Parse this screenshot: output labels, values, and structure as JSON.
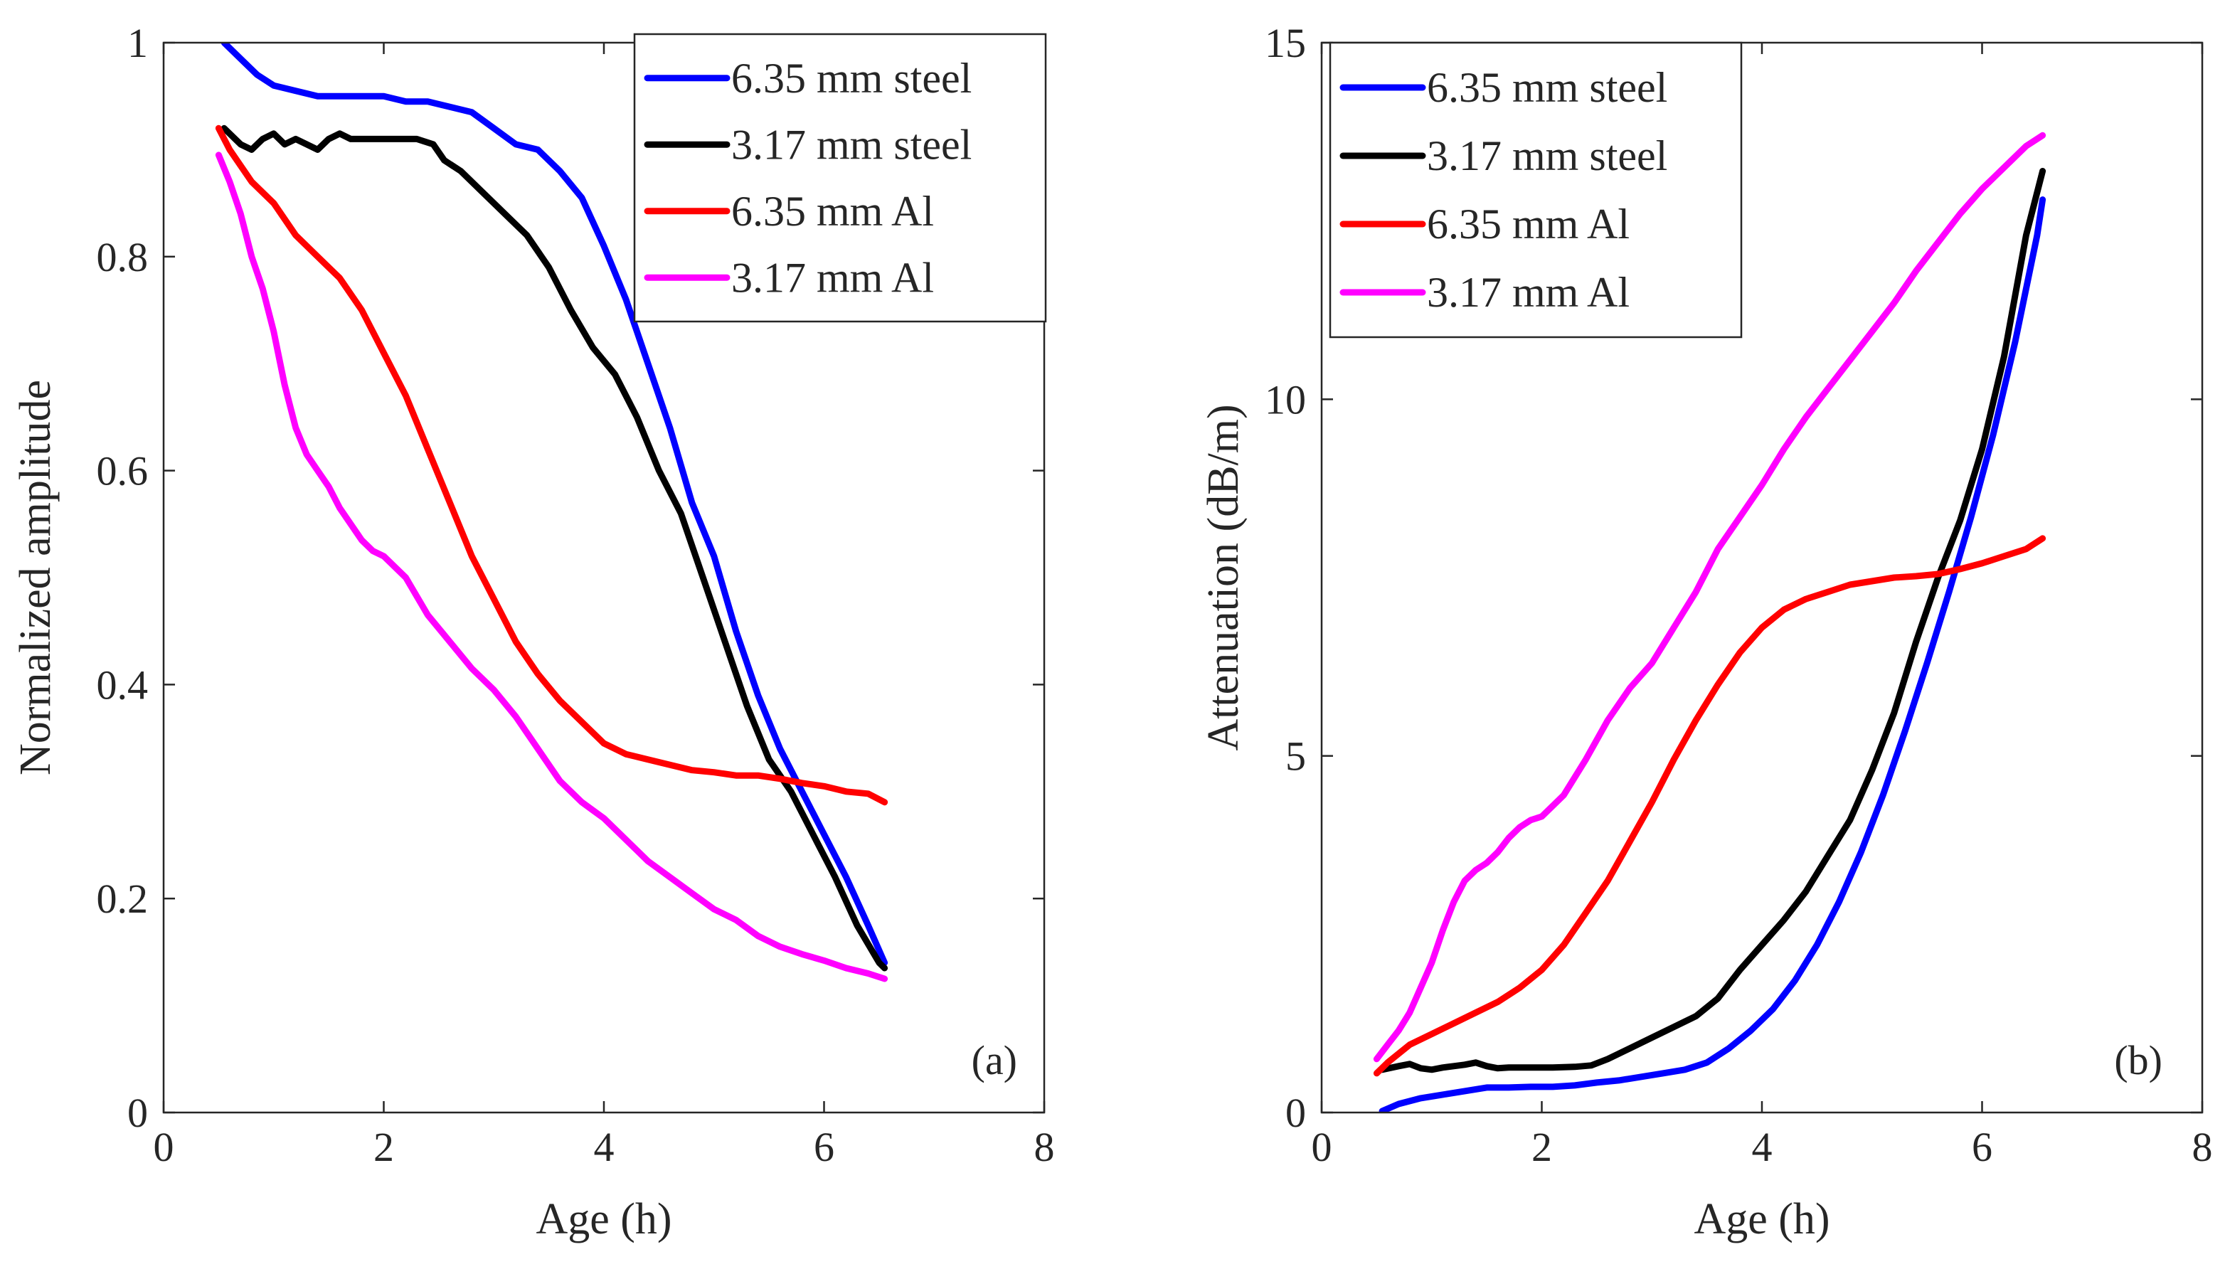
{
  "chart_data": [
    {
      "type": "line",
      "panel_label": "(a)",
      "xlabel": "Age (h)",
      "ylabel": "Normalized amplitude",
      "xlim": [
        0,
        8
      ],
      "ylim": [
        0,
        1
      ],
      "xticks": [
        0,
        2,
        4,
        6,
        8
      ],
      "yticks": [
        0,
        0.2,
        0.4,
        0.6,
        0.8,
        1
      ],
      "ytick_labels": [
        "0",
        "0.2",
        "0.4",
        "0.6",
        "0.8",
        "1"
      ],
      "legend_position": "top-right",
      "series": [
        {
          "name": "6.35 mm steel",
          "color": "#0000ff",
          "x": [
            0.55,
            0.7,
            0.85,
            1.0,
            1.2,
            1.4,
            1.6,
            1.8,
            2.0,
            2.2,
            2.4,
            2.6,
            2.8,
            3.0,
            3.2,
            3.4,
            3.6,
            3.8,
            4.0,
            4.2,
            4.4,
            4.6,
            4.8,
            5.0,
            5.2,
            5.4,
            5.6,
            5.8,
            6.0,
            6.2,
            6.4,
            6.55
          ],
          "y": [
            1.0,
            0.985,
            0.97,
            0.96,
            0.955,
            0.95,
            0.95,
            0.95,
            0.95,
            0.945,
            0.945,
            0.94,
            0.935,
            0.92,
            0.905,
            0.9,
            0.88,
            0.855,
            0.81,
            0.76,
            0.7,
            0.64,
            0.57,
            0.52,
            0.45,
            0.39,
            0.34,
            0.3,
            0.26,
            0.22,
            0.175,
            0.14
          ]
        },
        {
          "name": "3.17 mm steel",
          "color": "#000000",
          "x": [
            0.55,
            0.7,
            0.8,
            0.9,
            1.0,
            1.1,
            1.2,
            1.3,
            1.4,
            1.5,
            1.6,
            1.7,
            1.9,
            2.1,
            2.3,
            2.45,
            2.55,
            2.7,
            2.9,
            3.1,
            3.3,
            3.5,
            3.7,
            3.9,
            4.1,
            4.3,
            4.5,
            4.7,
            4.9,
            5.1,
            5.3,
            5.5,
            5.7,
            5.9,
            6.1,
            6.3,
            6.5,
            6.55
          ],
          "y": [
            0.92,
            0.905,
            0.9,
            0.91,
            0.915,
            0.905,
            0.91,
            0.905,
            0.9,
            0.91,
            0.915,
            0.91,
            0.91,
            0.91,
            0.91,
            0.905,
            0.89,
            0.88,
            0.86,
            0.84,
            0.82,
            0.79,
            0.75,
            0.715,
            0.69,
            0.65,
            0.6,
            0.56,
            0.5,
            0.44,
            0.38,
            0.33,
            0.3,
            0.26,
            0.22,
            0.175,
            0.14,
            0.135
          ]
        },
        {
          "name": "6.35 mm Al",
          "color": "#ff0000",
          "x": [
            0.5,
            0.6,
            0.8,
            1.0,
            1.2,
            1.4,
            1.6,
            1.8,
            2.0,
            2.2,
            2.4,
            2.6,
            2.8,
            3.0,
            3.2,
            3.4,
            3.6,
            3.8,
            4.0,
            4.2,
            4.4,
            4.6,
            4.8,
            5.0,
            5.2,
            5.4,
            5.6,
            5.8,
            6.0,
            6.2,
            6.4,
            6.55
          ],
          "y": [
            0.92,
            0.9,
            0.87,
            0.85,
            0.82,
            0.8,
            0.78,
            0.75,
            0.71,
            0.67,
            0.62,
            0.57,
            0.52,
            0.48,
            0.44,
            0.41,
            0.385,
            0.365,
            0.345,
            0.335,
            0.33,
            0.325,
            0.32,
            0.318,
            0.315,
            0.315,
            0.312,
            0.308,
            0.305,
            0.3,
            0.298,
            0.29
          ]
        },
        {
          "name": "3.17 mm Al",
          "color": "#ff00ff",
          "x": [
            0.5,
            0.6,
            0.7,
            0.8,
            0.9,
            1.0,
            1.1,
            1.2,
            1.3,
            1.4,
            1.5,
            1.6,
            1.7,
            1.8,
            1.9,
            2.0,
            2.2,
            2.4,
            2.6,
            2.8,
            3.0,
            3.2,
            3.4,
            3.6,
            3.8,
            4.0,
            4.2,
            4.4,
            4.6,
            4.8,
            5.0,
            5.2,
            5.4,
            5.6,
            5.8,
            6.0,
            6.2,
            6.4,
            6.55
          ],
          "y": [
            0.895,
            0.87,
            0.84,
            0.8,
            0.77,
            0.73,
            0.68,
            0.64,
            0.615,
            0.6,
            0.585,
            0.565,
            0.55,
            0.535,
            0.525,
            0.52,
            0.5,
            0.465,
            0.44,
            0.415,
            0.395,
            0.37,
            0.34,
            0.31,
            0.29,
            0.275,
            0.255,
            0.235,
            0.22,
            0.205,
            0.19,
            0.18,
            0.165,
            0.155,
            0.148,
            0.142,
            0.135,
            0.13,
            0.125
          ]
        }
      ]
    },
    {
      "type": "line",
      "panel_label": "(b)",
      "xlabel": "Age (h)",
      "ylabel": "Attenuation (dB/m)",
      "xlim": [
        0,
        8
      ],
      "ylim": [
        0,
        15
      ],
      "xticks": [
        0,
        2,
        4,
        6,
        8
      ],
      "yticks": [
        0,
        5,
        10,
        15
      ],
      "ytick_labels": [
        "0",
        "5",
        "10",
        "15"
      ],
      "legend_position": "top-left",
      "series": [
        {
          "name": "6.35 mm steel",
          "color": "#0000ff",
          "x": [
            0.55,
            0.7,
            0.9,
            1.1,
            1.3,
            1.5,
            1.7,
            1.9,
            2.1,
            2.3,
            2.5,
            2.7,
            2.9,
            3.1,
            3.3,
            3.5,
            3.7,
            3.9,
            4.1,
            4.3,
            4.5,
            4.7,
            4.9,
            5.1,
            5.3,
            5.5,
            5.7,
            5.9,
            6.1,
            6.3,
            6.5,
            6.55
          ],
          "y": [
            0.02,
            0.12,
            0.2,
            0.25,
            0.3,
            0.35,
            0.35,
            0.36,
            0.36,
            0.38,
            0.42,
            0.45,
            0.5,
            0.55,
            0.6,
            0.7,
            0.9,
            1.15,
            1.45,
            1.85,
            2.35,
            2.95,
            3.65,
            4.45,
            5.35,
            6.3,
            7.3,
            8.35,
            9.5,
            10.8,
            12.3,
            12.8
          ]
        },
        {
          "name": "3.17 mm steel",
          "color": "#000000",
          "x": [
            0.55,
            0.7,
            0.8,
            0.9,
            1.0,
            1.1,
            1.2,
            1.3,
            1.4,
            1.5,
            1.6,
            1.7,
            1.9,
            2.1,
            2.3,
            2.45,
            2.6,
            2.8,
            3.0,
            3.2,
            3.4,
            3.6,
            3.8,
            4.0,
            4.2,
            4.4,
            4.6,
            4.8,
            5.0,
            5.2,
            5.4,
            5.6,
            5.8,
            6.0,
            6.2,
            6.4,
            6.55
          ],
          "y": [
            0.6,
            0.65,
            0.68,
            0.62,
            0.6,
            0.63,
            0.65,
            0.67,
            0.7,
            0.65,
            0.62,
            0.63,
            0.63,
            0.63,
            0.64,
            0.66,
            0.75,
            0.9,
            1.05,
            1.2,
            1.35,
            1.6,
            2.0,
            2.35,
            2.7,
            3.1,
            3.6,
            4.1,
            4.8,
            5.6,
            6.6,
            7.5,
            8.3,
            9.3,
            10.6,
            12.3,
            13.2
          ]
        },
        {
          "name": "6.35 mm Al",
          "color": "#ff0000",
          "x": [
            0.5,
            0.6,
            0.8,
            1.0,
            1.2,
            1.4,
            1.6,
            1.8,
            2.0,
            2.2,
            2.4,
            2.6,
            2.8,
            3.0,
            3.2,
            3.4,
            3.6,
            3.8,
            4.0,
            4.2,
            4.4,
            4.6,
            4.8,
            5.0,
            5.2,
            5.4,
            5.6,
            5.8,
            6.0,
            6.2,
            6.4,
            6.55
          ],
          "y": [
            0.55,
            0.7,
            0.95,
            1.1,
            1.25,
            1.4,
            1.55,
            1.75,
            2.0,
            2.35,
            2.8,
            3.25,
            3.8,
            4.35,
            4.95,
            5.5,
            6.0,
            6.45,
            6.8,
            7.05,
            7.2,
            7.3,
            7.4,
            7.45,
            7.5,
            7.52,
            7.55,
            7.62,
            7.7,
            7.8,
            7.9,
            8.05
          ]
        },
        {
          "name": "3.17 mm Al",
          "color": "#ff00ff",
          "x": [
            0.5,
            0.6,
            0.7,
            0.8,
            0.9,
            1.0,
            1.1,
            1.2,
            1.3,
            1.4,
            1.5,
            1.6,
            1.7,
            1.8,
            1.9,
            2.0,
            2.2,
            2.4,
            2.6,
            2.8,
            3.0,
            3.2,
            3.4,
            3.6,
            3.8,
            4.0,
            4.2,
            4.4,
            4.6,
            4.8,
            5.0,
            5.2,
            5.4,
            5.6,
            5.8,
            6.0,
            6.2,
            6.4,
            6.55
          ],
          "y": [
            0.75,
            0.95,
            1.15,
            1.4,
            1.75,
            2.1,
            2.55,
            2.95,
            3.25,
            3.4,
            3.5,
            3.65,
            3.85,
            4.0,
            4.1,
            4.15,
            4.45,
            4.95,
            5.5,
            5.95,
            6.3,
            6.8,
            7.3,
            7.9,
            8.35,
            8.8,
            9.3,
            9.75,
            10.15,
            10.55,
            10.95,
            11.35,
            11.8,
            12.2,
            12.6,
            12.95,
            13.25,
            13.55,
            13.7
          ]
        }
      ]
    }
  ]
}
